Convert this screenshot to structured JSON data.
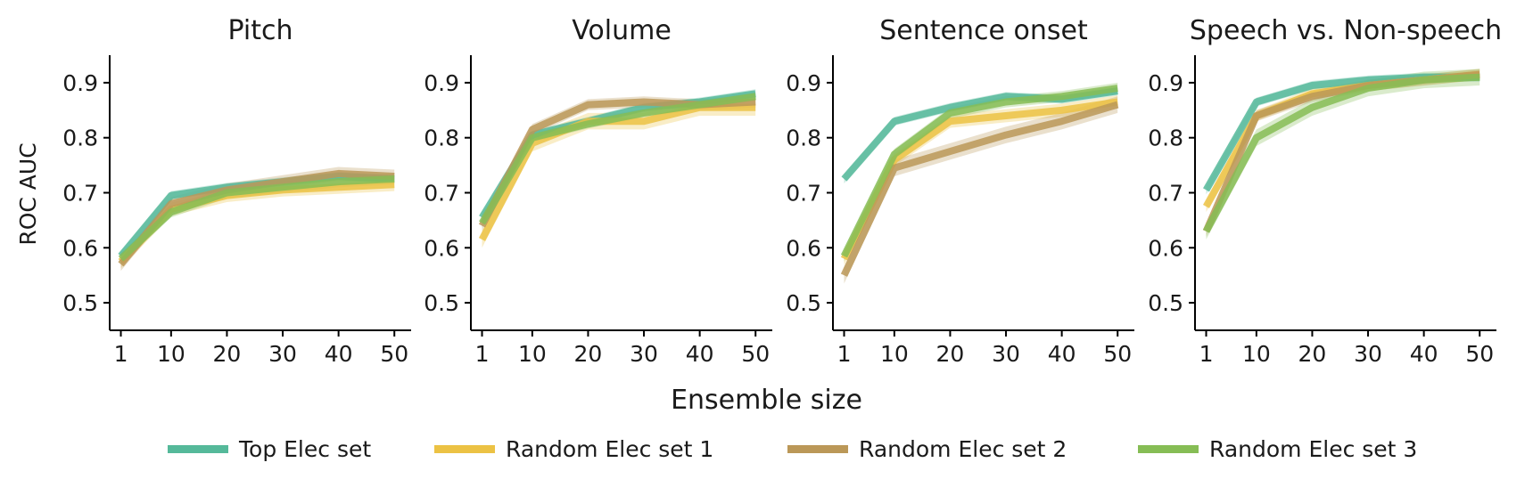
{
  "chart_data": [
    {
      "type": "line",
      "title": "Pitch",
      "xlabel": "Ensemble size",
      "ylabel": "ROC AUC",
      "x": [
        1,
        10,
        20,
        30,
        40,
        50
      ],
      "xticks": [
        "1",
        "10",
        "20",
        "30",
        "40",
        "50"
      ],
      "yticks": [
        "0.5",
        "0.6",
        "0.7",
        "0.8",
        "0.9"
      ],
      "xlim": [
        -1,
        53
      ],
      "ylim": [
        0.45,
        0.95
      ],
      "series": [
        {
          "name": "Top Elec set",
          "values": [
            0.585,
            0.695,
            0.71,
            0.72,
            0.73,
            0.725
          ],
          "band": 0.008
        },
        {
          "name": "Random Elec set 1",
          "values": [
            0.575,
            0.67,
            0.695,
            0.705,
            0.71,
            0.715
          ],
          "band": 0.012
        },
        {
          "name": "Random Elec set 2",
          "values": [
            0.57,
            0.68,
            0.705,
            0.72,
            0.735,
            0.73
          ],
          "band": 0.012
        },
        {
          "name": "Random Elec set 3",
          "values": [
            0.58,
            0.665,
            0.7,
            0.71,
            0.72,
            0.725
          ],
          "band": 0.01
        }
      ]
    },
    {
      "type": "line",
      "title": "Volume",
      "xlabel": "Ensemble size",
      "ylabel": "",
      "x": [
        1,
        10,
        20,
        30,
        40,
        50
      ],
      "xticks": [
        "1",
        "10",
        "20",
        "30",
        "40",
        "50"
      ],
      "yticks": [
        "0.5",
        "0.6",
        "0.7",
        "0.8",
        "0.9"
      ],
      "xlim": [
        -1,
        53
      ],
      "ylim": [
        0.45,
        0.95
      ],
      "series": [
        {
          "name": "Top Elec set",
          "values": [
            0.655,
            0.805,
            0.83,
            0.855,
            0.865,
            0.88
          ],
          "band": 0.008
        },
        {
          "name": "Random Elec set 1",
          "values": [
            0.615,
            0.79,
            0.83,
            0.83,
            0.855,
            0.855
          ],
          "band": 0.015
        },
        {
          "name": "Random Elec set 2",
          "values": [
            0.64,
            0.815,
            0.86,
            0.865,
            0.86,
            0.865
          ],
          "band": 0.01
        },
        {
          "name": "Random Elec set 3",
          "values": [
            0.645,
            0.8,
            0.825,
            0.845,
            0.86,
            0.875
          ],
          "band": 0.008
        }
      ]
    },
    {
      "type": "line",
      "title": "Sentence onset",
      "xlabel": "Ensemble size",
      "ylabel": "",
      "x": [
        1,
        10,
        20,
        30,
        40,
        50
      ],
      "xticks": [
        "1",
        "10",
        "20",
        "30",
        "40",
        "50"
      ],
      "yticks": [
        "0.5",
        "0.6",
        "0.7",
        "0.8",
        "0.9"
      ],
      "xlim": [
        -1,
        53
      ],
      "ylim": [
        0.45,
        0.95
      ],
      "series": [
        {
          "name": "Top Elec set",
          "values": [
            0.725,
            0.83,
            0.855,
            0.875,
            0.87,
            0.885
          ],
          "band": 0.008
        },
        {
          "name": "Random Elec set 1",
          "values": [
            0.58,
            0.76,
            0.83,
            0.84,
            0.85,
            0.865
          ],
          "band": 0.012
        },
        {
          "name": "Random Elec set 2",
          "values": [
            0.55,
            0.745,
            0.775,
            0.805,
            0.83,
            0.86
          ],
          "band": 0.015
        },
        {
          "name": "Random Elec set 3",
          "values": [
            0.585,
            0.77,
            0.845,
            0.865,
            0.875,
            0.89
          ],
          "band": 0.01
        }
      ]
    },
    {
      "type": "line",
      "title": "Speech vs. Non-speech",
      "xlabel": "Ensemble size",
      "ylabel": "",
      "x": [
        1,
        10,
        20,
        30,
        40,
        50
      ],
      "xticks": [
        "1",
        "10",
        "20",
        "30",
        "40",
        "50"
      ],
      "yticks": [
        "0.5",
        "0.6",
        "0.7",
        "0.8",
        "0.9"
      ],
      "xlim": [
        -1,
        53
      ],
      "ylim": [
        0.45,
        0.95
      ],
      "series": [
        {
          "name": "Top Elec set",
          "values": [
            0.705,
            0.865,
            0.895,
            0.905,
            0.91,
            0.91
          ],
          "band": 0.008
        },
        {
          "name": "Random Elec set 1",
          "values": [
            0.675,
            0.84,
            0.88,
            0.895,
            0.905,
            0.915
          ],
          "band": 0.01
        },
        {
          "name": "Random Elec set 2",
          "values": [
            0.63,
            0.84,
            0.875,
            0.895,
            0.905,
            0.915
          ],
          "band": 0.01
        },
        {
          "name": "Random Elec set 3",
          "values": [
            0.63,
            0.8,
            0.855,
            0.89,
            0.905,
            0.91
          ],
          "band": 0.015
        }
      ]
    }
  ],
  "figure": {
    "xlabel": "Ensemble size",
    "ylabel": "ROC AUC"
  },
  "legend": [
    {
      "name": "Top Elec set",
      "color": "#55b99a"
    },
    {
      "name": "Random Elec set 1",
      "color": "#ecc244"
    },
    {
      "name": "Random Elec set 2",
      "color": "#bb9858"
    },
    {
      "name": "Random Elec set 3",
      "color": "#86bd55"
    }
  ],
  "colors": {
    "Top Elec set": "#55b99a",
    "Random Elec set 1": "#ecc244",
    "Random Elec set 2": "#bb9858",
    "Random Elec set 3": "#86bd55"
  }
}
